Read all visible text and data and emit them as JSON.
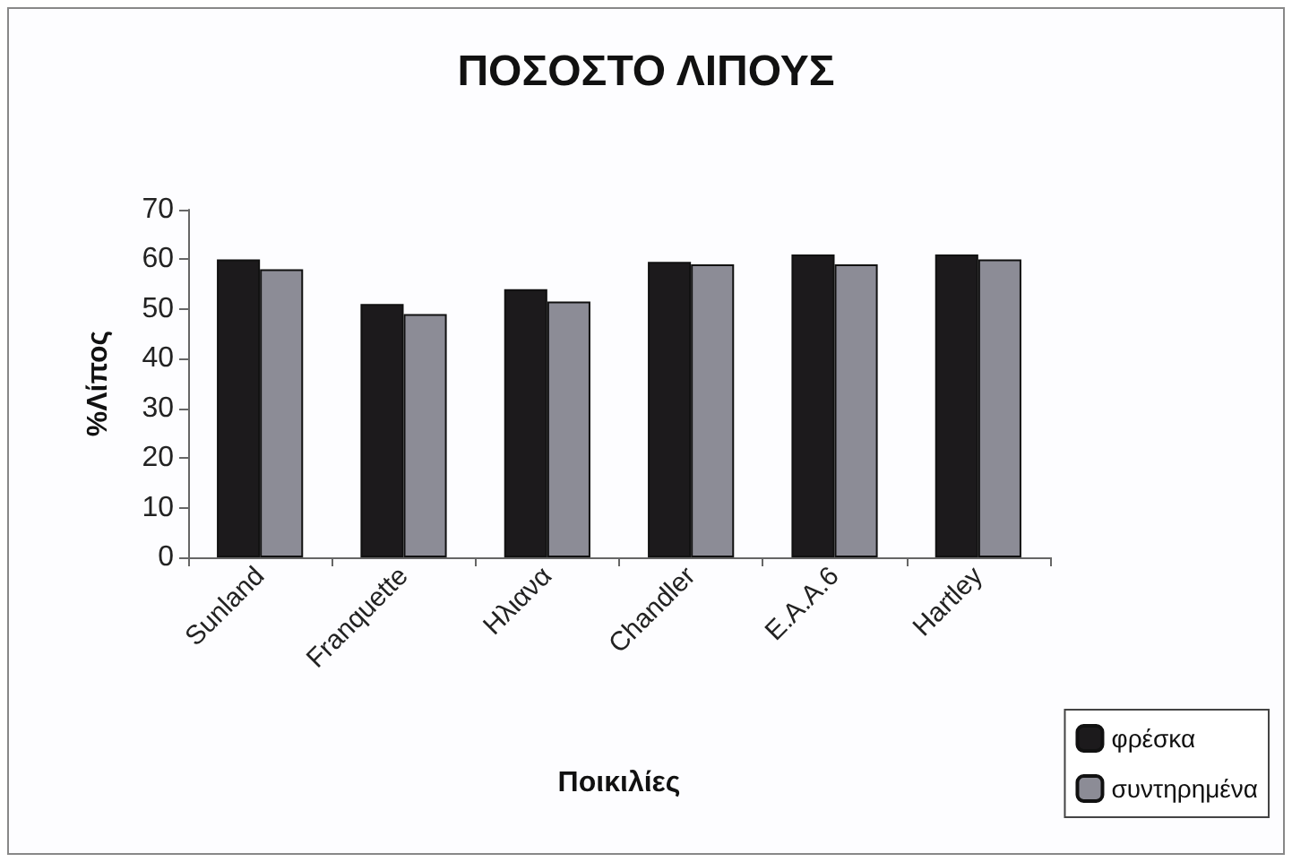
{
  "chart_data": {
    "type": "bar",
    "title": "ΠΟΣΟΣΤΟ ΛΙΠΟΥΣ",
    "xlabel": "Ποικιλίες",
    "ylabel": "%Λίπος",
    "categories": [
      "Sunland",
      "Franquette",
      "Ηλιανα",
      "Chandler",
      "Ε.Α.Α.6",
      "Hartley"
    ],
    "series": [
      {
        "name": "φρέσκα",
        "color": "#1c1a1c",
        "values": [
          60,
          51,
          54,
          59.5,
          61,
          61
        ]
      },
      {
        "name": "συντηρημένα",
        "color": "#8c8c96",
        "values": [
          58,
          49,
          51.5,
          59,
          59,
          60
        ]
      }
    ],
    "ylim": [
      0,
      70
    ],
    "yticks": [
      0,
      10,
      20,
      30,
      40,
      50,
      60,
      70
    ],
    "grid": false,
    "legend": "bottom right"
  }
}
